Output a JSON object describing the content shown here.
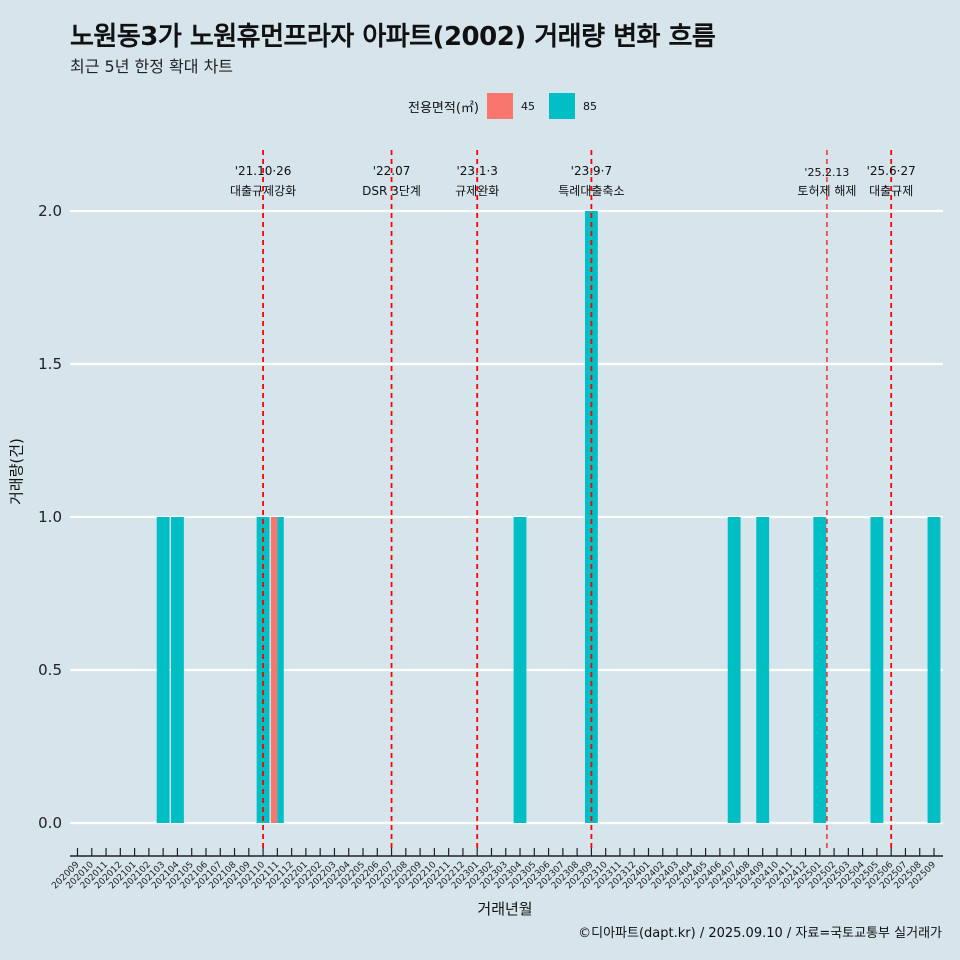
{
  "chart_data": {
    "type": "bar",
    "title": "노원동3가 노원휴먼프라자 아파트(2002) 거래량 변화 흐름",
    "subtitle": "최근 5년 한정 확대 차트",
    "xlabel": "거래년월",
    "ylabel": "거래량(건)",
    "caption": "©디아파트(dapt.kr) / 2025.09.10 / 자료=국토교통부 실거래가",
    "legend": {
      "title": "전용면적(㎡)",
      "position": "top",
      "entries": [
        {
          "name": "45",
          "color": "#f8766d"
        },
        {
          "name": "85",
          "color": "#00bfc4"
        }
      ]
    },
    "ylim": [
      0,
      2
    ],
    "yticks": [
      0.0,
      0.5,
      1.0,
      1.5,
      2.0
    ],
    "ytick_labels": [
      "0.0",
      "0.5",
      "1.0",
      "1.5",
      "2.0"
    ],
    "categories": [
      "202009",
      "202010",
      "202011",
      "202012",
      "202101",
      "202102",
      "202103",
      "202104",
      "202105",
      "202106",
      "202107",
      "202108",
      "202109",
      "202110",
      "202111",
      "202112",
      "202201",
      "202202",
      "202203",
      "202204",
      "202205",
      "202206",
      "202207",
      "202208",
      "202209",
      "202210",
      "202211",
      "202212",
      "202301",
      "202302",
      "202303",
      "202304",
      "202305",
      "202306",
      "202307",
      "202308",
      "202309",
      "202310",
      "202311",
      "202312",
      "202401",
      "202402",
      "202403",
      "202404",
      "202405",
      "202406",
      "202407",
      "202408",
      "202409",
      "202410",
      "202411",
      "202412",
      "202501",
      "202502",
      "202503",
      "202504",
      "202505",
      "202506",
      "202507",
      "202508",
      "202509"
    ],
    "tick_label_step": 1,
    "bars": [
      {
        "x": "202103",
        "series": "85",
        "value": 1
      },
      {
        "x": "202104",
        "series": "85",
        "value": 1
      },
      {
        "x": "202110",
        "series": "85",
        "value": 1
      },
      {
        "x": "202111",
        "series": "45",
        "value": 1
      },
      {
        "x": "202111",
        "series": "85",
        "value": 1
      },
      {
        "x": "202304",
        "series": "85",
        "value": 1
      },
      {
        "x": "202309",
        "series": "85",
        "value": 2
      },
      {
        "x": "202407",
        "series": "85",
        "value": 1
      },
      {
        "x": "202409",
        "series": "85",
        "value": 1
      },
      {
        "x": "202501",
        "series": "85",
        "value": 1
      },
      {
        "x": "202505",
        "series": "85",
        "value": 1
      },
      {
        "x": "202509",
        "series": "85",
        "value": 1
      }
    ],
    "annotations": [
      {
        "x": "202110",
        "line1": "'21.10·26",
        "line2": "대출규제강화"
      },
      {
        "x": "202207",
        "line1": "'22.07",
        "line2": "DSR 3단계"
      },
      {
        "x": "202301",
        "line1": "'23.1·3",
        "line2": "규제완화"
      },
      {
        "x": "202309",
        "line1": "'23.9·7",
        "line2": "특례대출축소"
      },
      {
        "x": "202502",
        "line1": "'25.2.13",
        "line2": "토허제 해제"
      },
      {
        "x": "202506",
        "line1": "'25.6·27",
        "line2": "대출규제"
      }
    ],
    "grid": {
      "horizontal": true,
      "vertical": false
    },
    "colors": {
      "background": "#d6e4ec",
      "grid": "#ffffff",
      "annotation_line": "#ff0000"
    }
  }
}
